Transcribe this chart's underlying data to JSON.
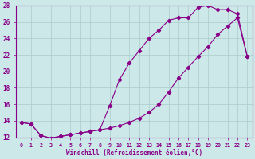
{
  "xlabel": "Windchill (Refroidissement éolien,°C)",
  "xlim": [
    -0.5,
    23.5
  ],
  "ylim": [
    12,
    28
  ],
  "yticks": [
    12,
    14,
    16,
    18,
    20,
    22,
    24,
    26,
    28
  ],
  "xticks": [
    0,
    1,
    2,
    3,
    4,
    5,
    6,
    7,
    8,
    9,
    10,
    11,
    12,
    13,
    14,
    15,
    16,
    17,
    18,
    19,
    20,
    21,
    22,
    23
  ],
  "bg_color": "#cce8e8",
  "line_color": "#880088",
  "grid_color": "#aacccc",
  "curve1_x": [
    0,
    1,
    2,
    3,
    4,
    5,
    6,
    7,
    8,
    9,
    10,
    11,
    12,
    13,
    14,
    15,
    16,
    17,
    18,
    19,
    20,
    21,
    22,
    23
  ],
  "curve1_y": [
    13.8,
    13.6,
    12.2,
    11.9,
    12.1,
    12.3,
    12.5,
    12.7,
    12.9,
    13.1,
    13.4,
    13.8,
    14.3,
    15.0,
    16.0,
    17.5,
    19.2,
    20.5,
    21.8,
    23.0,
    24.5,
    25.5,
    26.5,
    21.8
  ],
  "curve2_x": [
    0,
    1,
    2,
    3,
    4,
    5,
    6,
    7,
    8,
    9,
    10,
    11,
    12,
    13,
    14,
    15,
    16,
    17,
    18,
    19,
    20,
    21
  ],
  "curve2_y": [
    13.8,
    13.6,
    12.2,
    11.9,
    12.1,
    12.3,
    12.5,
    12.7,
    12.9,
    15.8,
    19.0,
    21.0,
    22.5,
    24.0,
    25.0,
    26.2,
    26.5,
    26.5,
    27.8,
    28.0,
    27.5,
    27.5
  ],
  "curve3_x": [
    21,
    22,
    23
  ],
  "curve3_y": [
    27.5,
    27.0,
    21.8
  ]
}
